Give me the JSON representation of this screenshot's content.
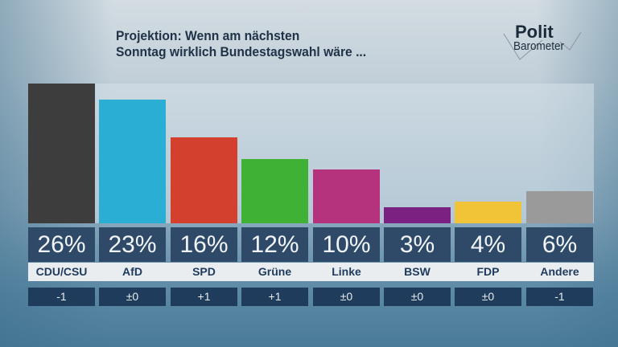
{
  "title": {
    "line1": "Projektion: Wenn am nächsten",
    "line2": "Sonntag wirklich Bundestagswahl wäre ..."
  },
  "logo": {
    "top": "Polit",
    "bottom": "Barometer"
  },
  "chart_data": {
    "type": "bar",
    "categories": [
      "CDU/CSU",
      "AfD",
      "SPD",
      "Grüne",
      "Linke",
      "BSW",
      "FDP",
      "Andere"
    ],
    "values": [
      26,
      23,
      16,
      12,
      10,
      3,
      4,
      6
    ],
    "value_labels": [
      "26%",
      "23%",
      "16%",
      "12%",
      "10%",
      "3%",
      "4%",
      "6%"
    ],
    "changes": [
      "-1",
      "±0",
      "+1",
      "+1",
      "±0",
      "±0",
      "±0",
      "-1"
    ],
    "colors": [
      "#3d3d3d",
      "#2aaed3",
      "#d3412e",
      "#3fb236",
      "#b5327d",
      "#7a2181",
      "#f0c436",
      "#9a9a9a"
    ],
    "ylim": [
      0,
      26
    ],
    "grid": false
  }
}
